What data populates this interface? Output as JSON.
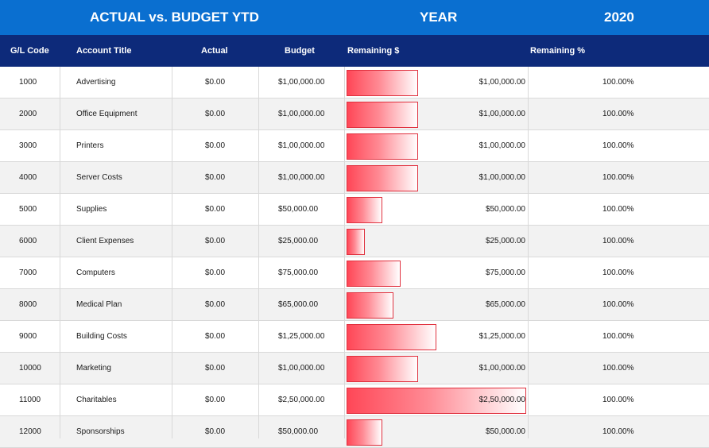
{
  "banner": {
    "title": "ACTUAL vs. BUDGET YTD",
    "year_label": "YEAR",
    "year_value": "2020"
  },
  "columns": {
    "gl_code": "G/L Code",
    "account_title": "Account Title",
    "actual": "Actual",
    "budget": "Budget",
    "remaining_amount": "Remaining $",
    "remaining_pct": "Remaining %"
  },
  "rows": [
    {
      "code": "1000",
      "title": "Advertising",
      "actual": "$0.00",
      "budget": "$1,00,000.00",
      "remaining": "$1,00,000.00",
      "pct": "100.00%",
      "remaining_value": 100000
    },
    {
      "code": "2000",
      "title": "Office Equipment",
      "actual": "$0.00",
      "budget": "$1,00,000.00",
      "remaining": "$1,00,000.00",
      "pct": "100.00%",
      "remaining_value": 100000
    },
    {
      "code": "3000",
      "title": "Printers",
      "actual": "$0.00",
      "budget": "$1,00,000.00",
      "remaining": "$1,00,000.00",
      "pct": "100.00%",
      "remaining_value": 100000
    },
    {
      "code": "4000",
      "title": "Server Costs",
      "actual": "$0.00",
      "budget": "$1,00,000.00",
      "remaining": "$1,00,000.00",
      "pct": "100.00%",
      "remaining_value": 100000
    },
    {
      "code": "5000",
      "title": "Supplies",
      "actual": "$0.00",
      "budget": "$50,000.00",
      "remaining": "$50,000.00",
      "pct": "100.00%",
      "remaining_value": 50000
    },
    {
      "code": "6000",
      "title": "Client Expenses",
      "actual": "$0.00",
      "budget": "$25,000.00",
      "remaining": "$25,000.00",
      "pct": "100.00%",
      "remaining_value": 25000
    },
    {
      "code": "7000",
      "title": "Computers",
      "actual": "$0.00",
      "budget": "$75,000.00",
      "remaining": "$75,000.00",
      "pct": "100.00%",
      "remaining_value": 75000
    },
    {
      "code": "8000",
      "title": "Medical Plan",
      "actual": "$0.00",
      "budget": "$65,000.00",
      "remaining": "$65,000.00",
      "pct": "100.00%",
      "remaining_value": 65000
    },
    {
      "code": "9000",
      "title": "Building Costs",
      "actual": "$0.00",
      "budget": "$1,25,000.00",
      "remaining": "$1,25,000.00",
      "pct": "100.00%",
      "remaining_value": 125000
    },
    {
      "code": "10000",
      "title": "Marketing",
      "actual": "$0.00",
      "budget": "$1,00,000.00",
      "remaining": "$1,00,000.00",
      "pct": "100.00%",
      "remaining_value": 100000
    },
    {
      "code": "11000",
      "title": "Charitables",
      "actual": "$0.00",
      "budget": "$2,50,000.00",
      "remaining": "$2,50,000.00",
      "pct": "100.00%",
      "remaining_value": 250000
    },
    {
      "code": "12000",
      "title": "Sponsorships",
      "actual": "$0.00",
      "budget": "$50,000.00",
      "remaining": "$50,000.00",
      "pct": "100.00%",
      "remaining_value": 50000
    }
  ],
  "colors": {
    "banner": "#0a6fd0",
    "header": "#0d2a7a",
    "bar_fill": "#ff4757",
    "bar_border": "#e0303e"
  }
}
